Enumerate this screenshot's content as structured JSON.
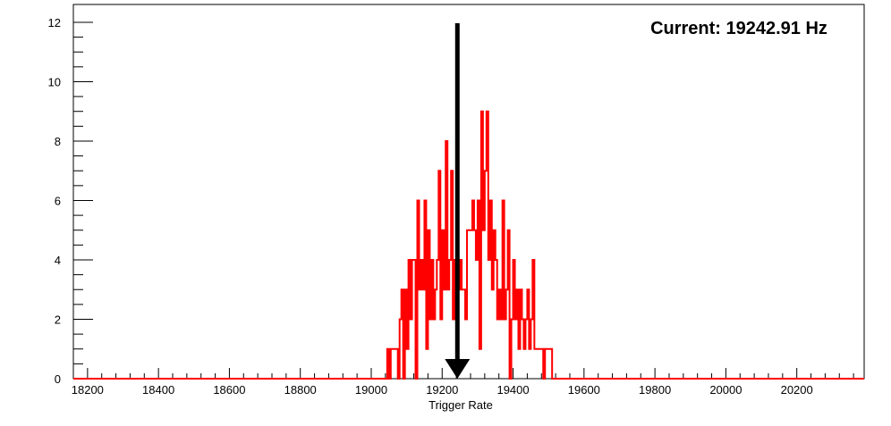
{
  "chart_data": {
    "type": "histogram",
    "annotation": "Current: 19242.91 Hz",
    "xlabel": "Trigger Rate",
    "ylabel": "",
    "xlim": [
      18160,
      20390
    ],
    "ylim": [
      0,
      12.6
    ],
    "x_ticks": [
      18200,
      18400,
      18600,
      18800,
      19000,
      19200,
      19400,
      19600,
      19800,
      20000,
      20200
    ],
    "y_ticks": [
      0,
      2,
      4,
      6,
      8,
      10,
      12
    ],
    "marker": {
      "value": 19242.91,
      "label": "current",
      "color": "#000000"
    },
    "series_color": "#ff0000",
    "series": [
      {
        "name": "",
        "bin_width": 5,
        "bins": [
          [
            19045,
            1
          ],
          [
            19050,
            0
          ],
          [
            19055,
            1
          ],
          [
            19060,
            1
          ],
          [
            19065,
            1
          ],
          [
            19070,
            1
          ],
          [
            19075,
            0
          ],
          [
            19080,
            2
          ],
          [
            19085,
            3
          ],
          [
            19090,
            0
          ],
          [
            19095,
            3
          ],
          [
            19100,
            1
          ],
          [
            19105,
            4
          ],
          [
            19110,
            2
          ],
          [
            19115,
            4
          ],
          [
            19120,
            4
          ],
          [
            19125,
            0
          ],
          [
            19130,
            6
          ],
          [
            19135,
            3
          ],
          [
            19140,
            4
          ],
          [
            19145,
            3
          ],
          [
            19150,
            6
          ],
          [
            19155,
            1
          ],
          [
            19160,
            5
          ],
          [
            19165,
            2
          ],
          [
            19170,
            4
          ],
          [
            19175,
            2
          ],
          [
            19180,
            3
          ],
          [
            19185,
            4
          ],
          [
            19190,
            7
          ],
          [
            19195,
            2
          ],
          [
            19200,
            5
          ],
          [
            19205,
            3
          ],
          [
            19210,
            8
          ],
          [
            19215,
            3
          ],
          [
            19220,
            4
          ],
          [
            19225,
            7
          ],
          [
            19230,
            2
          ],
          [
            19235,
            4
          ],
          [
            19240,
            5
          ],
          [
            19245,
            3
          ],
          [
            19250,
            4
          ],
          [
            19255,
            3
          ],
          [
            19260,
            3
          ],
          [
            19265,
            2
          ],
          [
            19270,
            5
          ],
          [
            19275,
            5
          ],
          [
            19280,
            5
          ],
          [
            19285,
            6
          ],
          [
            19290,
            5
          ],
          [
            19295,
            4
          ],
          [
            19300,
            6
          ],
          [
            19305,
            1
          ],
          [
            19310,
            9
          ],
          [
            19315,
            5
          ],
          [
            19320,
            7
          ],
          [
            19325,
            9
          ],
          [
            19330,
            4
          ],
          [
            19335,
            6
          ],
          [
            19340,
            3
          ],
          [
            19345,
            5
          ],
          [
            19350,
            4
          ],
          [
            19355,
            2
          ],
          [
            19360,
            3
          ],
          [
            19365,
            2
          ],
          [
            19370,
            6
          ],
          [
            19375,
            2
          ],
          [
            19380,
            3
          ],
          [
            19385,
            5
          ],
          [
            19390,
            0
          ],
          [
            19395,
            2
          ],
          [
            19400,
            4
          ],
          [
            19405,
            2
          ],
          [
            19410,
            3
          ],
          [
            19415,
            1
          ],
          [
            19420,
            3
          ],
          [
            19425,
            2
          ],
          [
            19430,
            1
          ],
          [
            19435,
            2
          ],
          [
            19440,
            3
          ],
          [
            19445,
            1
          ],
          [
            19450,
            2
          ],
          [
            19455,
            4
          ],
          [
            19460,
            1
          ],
          [
            19465,
            1
          ],
          [
            19470,
            1
          ],
          [
            19475,
            1
          ],
          [
            19480,
            1
          ],
          [
            19485,
            0
          ],
          [
            19490,
            1
          ],
          [
            19495,
            1
          ],
          [
            19500,
            1
          ],
          [
            19505,
            1
          ],
          [
            19510,
            0
          ]
        ]
      }
    ]
  }
}
